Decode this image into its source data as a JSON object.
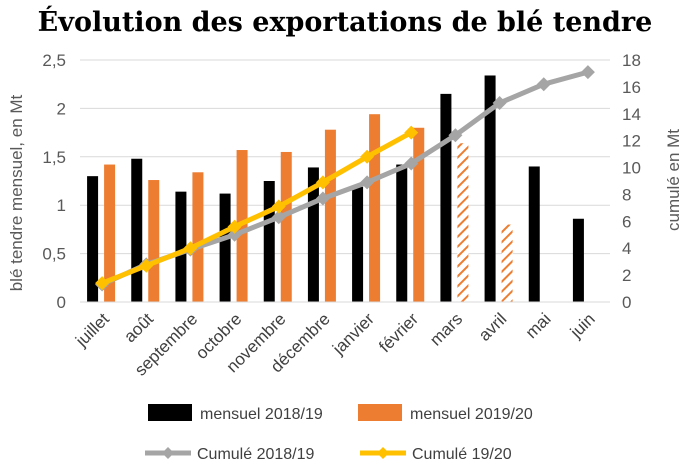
{
  "chart_data": {
    "type": "bar",
    "title": "Évolution des exportations de blé tendre",
    "ylabel": "blé tendre mensuel, en Mt",
    "y2label": "cumulé en Mt",
    "ylim": [
      0,
      2.5
    ],
    "y2lim": [
      0,
      18
    ],
    "yticks": [
      "0",
      "0,5",
      "1",
      "1,5",
      "2",
      "2,5"
    ],
    "y2ticks": [
      "0",
      "2",
      "4",
      "6",
      "8",
      "10",
      "12",
      "14",
      "16",
      "18"
    ],
    "categories": [
      "juillet",
      "août",
      "septembre",
      "octobre",
      "novembre",
      "décembre",
      "janvier",
      "février",
      "mars",
      "avril",
      "mai",
      "juin"
    ],
    "grid": true,
    "legend_position": "bottom",
    "series": [
      {
        "name": "mensuel 2018/19",
        "type": "bar",
        "axis": "left",
        "color": "#000000",
        "values": [
          1.3,
          1.48,
          1.14,
          1.12,
          1.25,
          1.39,
          1.19,
          1.42,
          2.15,
          2.34,
          1.4,
          0.86
        ]
      },
      {
        "name": "mensuel 2019/20",
        "type": "bar",
        "axis": "left",
        "color": "#ED7D31",
        "values": [
          1.42,
          1.26,
          1.34,
          1.57,
          1.55,
          1.78,
          1.94,
          1.8,
          1.64,
          0.8,
          null,
          null
        ],
        "hatched": [
          false,
          false,
          false,
          false,
          false,
          false,
          false,
          false,
          true,
          true,
          false,
          false
        ]
      },
      {
        "name": "Cumulé 2018/19",
        "type": "line",
        "axis": "right",
        "color": "#A5A5A5",
        "marker": "diamond",
        "values": [
          1.3,
          2.8,
          3.9,
          5.0,
          6.3,
          7.7,
          8.9,
          10.3,
          12.4,
          14.8,
          16.2,
          17.1
        ]
      },
      {
        "name": "Cumulé 19/20",
        "type": "line",
        "axis": "right",
        "color": "#FFC000",
        "marker": "diamond",
        "values": [
          1.4,
          2.7,
          4.0,
          5.6,
          7.1,
          8.9,
          10.8,
          12.6,
          null,
          null,
          null,
          null
        ]
      }
    ]
  }
}
